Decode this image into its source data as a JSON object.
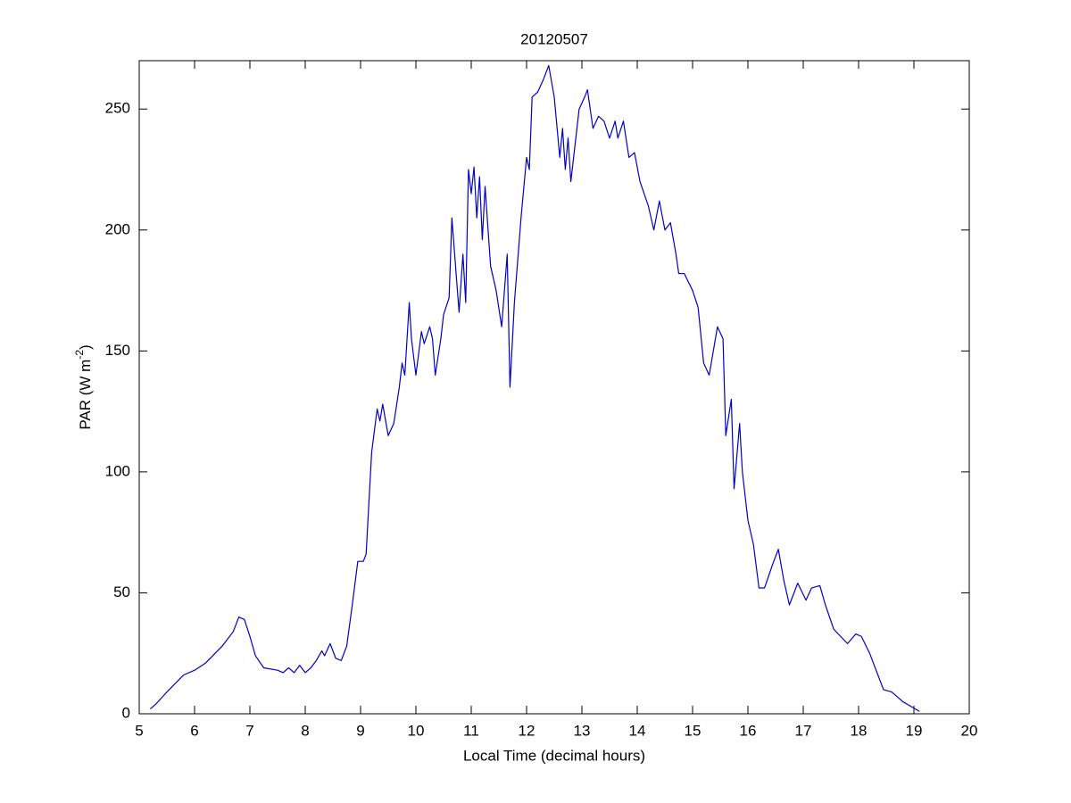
{
  "chart_data": {
    "type": "line",
    "title": "20120507",
    "xlabel": "Local Time (decimal hours)",
    "ylabel": [
      "PAR (W m",
      "-2",
      ")"
    ],
    "xlim": [
      5,
      20
    ],
    "xticks": [
      5,
      6,
      7,
      8,
      9,
      10,
      11,
      12,
      13,
      14,
      15,
      16,
      17,
      18,
      19,
      20
    ],
    "ylim": [
      0,
      270
    ],
    "yticks": [
      0,
      50,
      100,
      150,
      200,
      250
    ],
    "grid": false,
    "series": [
      {
        "color": "#0000c8",
        "x": [
          5.2,
          5.3,
          5.5,
          5.8,
          6.0,
          6.2,
          6.5,
          6.7,
          6.8,
          6.9,
          7.0,
          7.1,
          7.25,
          7.5,
          7.6,
          7.7,
          7.8,
          7.9,
          8.0,
          8.1,
          8.2,
          8.3,
          8.35,
          8.45,
          8.55,
          8.65,
          8.75,
          8.85,
          8.95,
          9.05,
          9.1,
          9.2,
          9.3,
          9.35,
          9.4,
          9.5,
          9.6,
          9.7,
          9.75,
          9.8,
          9.88,
          9.92,
          10.0,
          10.1,
          10.15,
          10.25,
          10.3,
          10.35,
          10.45,
          10.5,
          10.6,
          10.65,
          10.7,
          10.78,
          10.85,
          10.9,
          10.95,
          11.0,
          11.05,
          11.1,
          11.15,
          11.2,
          11.25,
          11.35,
          11.45,
          11.55,
          11.65,
          11.7,
          11.78,
          11.9,
          12.0,
          12.05,
          12.1,
          12.2,
          12.3,
          12.4,
          12.5,
          12.6,
          12.65,
          12.7,
          12.75,
          12.8,
          12.95,
          13.05,
          13.1,
          13.2,
          13.3,
          13.4,
          13.5,
          13.6,
          13.65,
          13.75,
          13.85,
          13.95,
          14.05,
          14.2,
          14.3,
          14.4,
          14.5,
          14.6,
          14.7,
          14.75,
          14.85,
          15.0,
          15.1,
          15.2,
          15.3,
          15.45,
          15.55,
          15.6,
          15.7,
          15.75,
          15.85,
          15.9,
          16.0,
          16.1,
          16.2,
          16.3,
          16.45,
          16.55,
          16.65,
          16.75,
          16.9,
          17.05,
          17.15,
          17.3,
          17.4,
          17.55,
          17.8,
          17.95,
          18.05,
          18.2,
          18.45,
          18.6,
          18.8,
          19.1
        ],
        "values": [
          2,
          4,
          9,
          16,
          18,
          21,
          28,
          34,
          40,
          39,
          32,
          24,
          19,
          18,
          17,
          19,
          17,
          20,
          17,
          19,
          22,
          26,
          24,
          29,
          23,
          22,
          28,
          45,
          63,
          63,
          66,
          108,
          126,
          121,
          128,
          115,
          120,
          135,
          145,
          140,
          170,
          155,
          140,
          158,
          153,
          160,
          155,
          140,
          155,
          165,
          172,
          205,
          190,
          166,
          190,
          170,
          225,
          215,
          226,
          205,
          222,
          196,
          218,
          185,
          175,
          160,
          190,
          135,
          170,
          205,
          230,
          225,
          255,
          257,
          262,
          268,
          255,
          230,
          242,
          225,
          238,
          220,
          250,
          255,
          258,
          242,
          247,
          245,
          238,
          245,
          238,
          245,
          230,
          232,
          220,
          210,
          200,
          212,
          200,
          203,
          190,
          182,
          182,
          175,
          168,
          145,
          140,
          160,
          155,
          115,
          130,
          93,
          120,
          100,
          80,
          70,
          52,
          52,
          62,
          68,
          55,
          45,
          54,
          47,
          52,
          53,
          45,
          35,
          29,
          33,
          32,
          25,
          10,
          9,
          5,
          1
        ]
      }
    ]
  }
}
